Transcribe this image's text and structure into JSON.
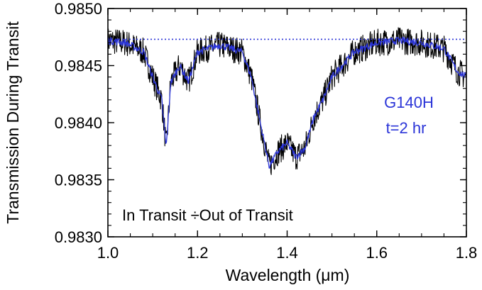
{
  "chart_data": {
    "type": "line",
    "title": "",
    "xlabel": "Wavelength (μm)",
    "ylabel": "Transmission During Transit",
    "xlim": [
      1.0,
      1.8
    ],
    "ylim": [
      0.983,
      0.985
    ],
    "x_ticks": [
      "1.0",
      "1.2",
      "1.4",
      "1.6",
      "1.8"
    ],
    "y_ticks": [
      "0.9830",
      "0.9835",
      "0.9840",
      "0.9845",
      "0.9850"
    ],
    "reference_level": 0.98473,
    "annotations": {
      "instrument": "G140H",
      "time": "t=2 hr",
      "caption": "In Transit ÷Out of Transit"
    },
    "series": [
      {
        "color": "#000000",
        "noise": 0.00012,
        "x": [
          1.0,
          1.04,
          1.08,
          1.1,
          1.12,
          1.125,
          1.13,
          1.135,
          1.14,
          1.16,
          1.18,
          1.2,
          1.25,
          1.3,
          1.32,
          1.34,
          1.36,
          1.38,
          1.4,
          1.42,
          1.44,
          1.46,
          1.48,
          1.5,
          1.55,
          1.6,
          1.65,
          1.7,
          1.75,
          1.78,
          1.8
        ],
        "values": [
          0.98472,
          0.9847,
          0.98462,
          0.9844,
          0.9842,
          0.984,
          0.98378,
          0.98405,
          0.98435,
          0.9845,
          0.98436,
          0.98462,
          0.98468,
          0.98462,
          0.9844,
          0.984,
          0.98362,
          0.98375,
          0.98382,
          0.9837,
          0.98378,
          0.98405,
          0.9842,
          0.9844,
          0.98462,
          0.9847,
          0.98472,
          0.9847,
          0.98465,
          0.98445,
          0.9844
        ]
      },
      {
        "color": "#2b35d8",
        "noise": 4e-05,
        "x": [
          1.0,
          1.04,
          1.08,
          1.1,
          1.12,
          1.125,
          1.13,
          1.135,
          1.14,
          1.16,
          1.18,
          1.2,
          1.25,
          1.3,
          1.32,
          1.34,
          1.36,
          1.38,
          1.4,
          1.42,
          1.44,
          1.46,
          1.48,
          1.5,
          1.55,
          1.6,
          1.65,
          1.7,
          1.75,
          1.78,
          1.8
        ],
        "values": [
          0.98472,
          0.9847,
          0.98462,
          0.9844,
          0.9842,
          0.984,
          0.98378,
          0.98405,
          0.98435,
          0.9845,
          0.98436,
          0.98462,
          0.98468,
          0.98462,
          0.9844,
          0.984,
          0.98362,
          0.98375,
          0.98382,
          0.9837,
          0.98378,
          0.98405,
          0.9842,
          0.9844,
          0.98462,
          0.9847,
          0.98472,
          0.9847,
          0.98465,
          0.98445,
          0.9844
        ]
      }
    ]
  }
}
